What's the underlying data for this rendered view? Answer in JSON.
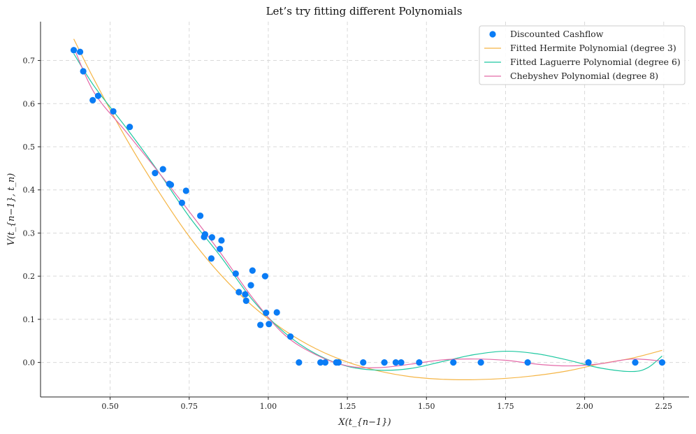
{
  "chart_data": {
    "type": "scatter",
    "title": "Let’s try fitting different Polynomials",
    "xlabel": "X(t_{n−1})",
    "ylabel": "V(t_{n−1}, t_n)",
    "xlim": [
      0.28,
      2.33
    ],
    "ylim": [
      -0.08,
      0.79
    ],
    "x_ticks": [
      "0.50",
      "0.75",
      "1.00",
      "1.25",
      "1.50",
      "1.75",
      "2.00",
      "2.25"
    ],
    "y_ticks": [
      "0.0",
      "0.1",
      "0.2",
      "0.3",
      "0.4",
      "0.5",
      "0.6",
      "0.7"
    ],
    "grid": true,
    "legend_position": "top-right",
    "scatter": {
      "name": "Discounted Cashflow",
      "color": "#0a7cf5",
      "x": [
        0.385,
        0.405,
        0.415,
        0.445,
        0.462,
        0.51,
        0.562,
        0.642,
        0.667,
        0.687,
        0.692,
        0.727,
        0.74,
        0.785,
        0.797,
        0.8,
        0.82,
        0.822,
        0.847,
        0.852,
        0.897,
        0.907,
        0.927,
        0.93,
        0.945,
        0.95,
        0.975,
        0.99,
        0.993,
        1.002,
        1.027,
        1.07,
        1.097,
        1.165,
        1.18,
        1.215,
        1.222,
        1.3,
        1.367,
        1.403,
        1.42,
        1.477,
        1.585,
        1.672,
        1.82,
        2.012,
        2.16,
        2.245
      ],
      "y": [
        0.724,
        0.72,
        0.675,
        0.608,
        0.618,
        0.582,
        0.546,
        0.439,
        0.448,
        0.414,
        0.412,
        0.37,
        0.398,
        0.34,
        0.291,
        0.297,
        0.241,
        0.29,
        0.263,
        0.283,
        0.206,
        0.163,
        0.158,
        0.143,
        0.179,
        0.213,
        0.087,
        0.2,
        0.115,
        0.089,
        0.116,
        0.06,
        0.0,
        0.0,
        0.0,
        0.0,
        0.0,
        0.0,
        0.0,
        0.0,
        0.0,
        0.0,
        0.0,
        0.0,
        0.0,
        0.0,
        0.0,
        0.0
      ]
    },
    "series": [
      {
        "name": "Fitted Hermite Polynomial (degree 3)",
        "color": "#f5b545",
        "x": [
          0.385,
          0.45,
          0.55,
          0.65,
          0.75,
          0.85,
          0.95,
          1.05,
          1.15,
          1.25,
          1.35,
          1.45,
          1.55,
          1.65,
          1.75,
          1.85,
          1.95,
          2.05,
          2.15,
          2.245
        ],
        "y": [
          0.75,
          0.655,
          0.52,
          0.4,
          0.292,
          0.203,
          0.131,
          0.075,
          0.032,
          0.001,
          -0.02,
          -0.033,
          -0.039,
          -0.04,
          -0.037,
          -0.03,
          -0.019,
          -0.003,
          0.01,
          0.028
        ]
      },
      {
        "name": "Fitted Laguerre Polynomial (degree 6)",
        "color": "#1ec8a0",
        "x": [
          0.385,
          0.45,
          0.55,
          0.65,
          0.75,
          0.85,
          0.95,
          1.05,
          1.15,
          1.25,
          1.35,
          1.45,
          1.55,
          1.65,
          1.75,
          1.85,
          1.95,
          2.05,
          2.15,
          2.2,
          2.245
        ],
        "y": [
          0.716,
          0.64,
          0.545,
          0.445,
          0.338,
          0.245,
          0.145,
          0.07,
          0.02,
          -0.009,
          -0.018,
          -0.014,
          0.002,
          0.018,
          0.026,
          0.02,
          0.005,
          -0.013,
          -0.021,
          -0.012,
          0.015
        ]
      },
      {
        "name": "Chebyshev Polynomial (degree 8)",
        "color": "#e46aa8",
        "x": [
          0.385,
          0.45,
          0.55,
          0.65,
          0.75,
          0.85,
          0.95,
          1.05,
          1.15,
          1.25,
          1.35,
          1.45,
          1.55,
          1.65,
          1.75,
          1.85,
          1.95,
          2.05,
          2.15,
          2.245
        ],
        "y": [
          0.73,
          0.625,
          0.535,
          0.444,
          0.35,
          0.253,
          0.15,
          0.065,
          0.018,
          -0.008,
          -0.012,
          -0.004,
          0.006,
          0.008,
          0.005,
          -0.004,
          -0.008,
          -0.003,
          0.008,
          0.003
        ]
      }
    ]
  }
}
